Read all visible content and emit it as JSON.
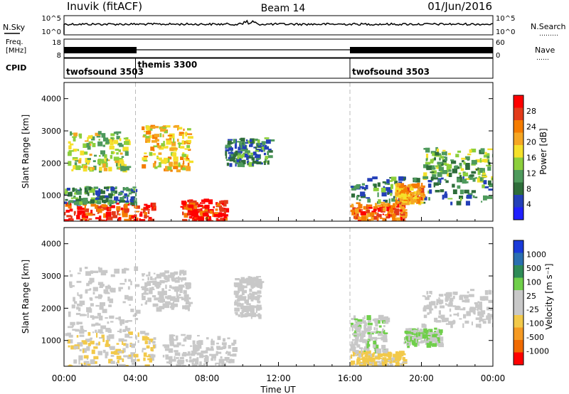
{
  "header": {
    "site": "Inuvik (fitACF)",
    "beam": "Beam 14",
    "date": "01/Jun/2016"
  },
  "panel_labels": {
    "nsky": "N.Sky",
    "nsearch": "N.Search",
    "freq_a": "Freq.",
    "freq_b": "[MHz]",
    "nave": "Nave",
    "cpid": "CPID",
    "dots_nsearch": "………",
    "dots_nave": "……"
  },
  "noise_axis": {
    "left_top": "10^5",
    "left_bottom": "10^0",
    "right_top": "10^5",
    "right_bottom": "10^0"
  },
  "freq_axis": {
    "left_top": "18",
    "left_bottom": "8",
    "right_top": "60",
    "right_bottom": "0"
  },
  "cpid_segments": [
    {
      "label": "twofsound 3503",
      "start_hour": 0
    },
    {
      "label": "themis 3300",
      "start_hour": 4
    },
    {
      "label": "twofsound 3503",
      "start_hour": 16
    }
  ],
  "colors": {
    "power": [
      "#2020ff",
      "#2440b8",
      "#2e6d3a",
      "#4e9a5c",
      "#8ccf3c",
      "#f5e02a",
      "#f5a623",
      "#f57c00",
      "#e33b1a",
      "#ff0000"
    ],
    "velocity": [
      "#ff0000",
      "#f06a00",
      "#f59a23",
      "#f2c94a",
      "#c8c8c8",
      "#c8c8c8",
      "#6fcf4a",
      "#2e8b57",
      "#2a6fb0",
      "#1a3ad9"
    ]
  },
  "chart_data": [
    {
      "type": "heatmap",
      "title": "",
      "xlabel": "",
      "ylabel": "Slant Range [km]",
      "x_ticks": [
        "00:00",
        "04:00",
        "08:00",
        "12:00",
        "16:00",
        "20:00",
        "00:00"
      ],
      "y_ticks": [
        "1000",
        "2000",
        "3000",
        "4000"
      ],
      "ylim": [
        200,
        4500
      ],
      "xlim_hours": [
        0,
        24
      ],
      "colorbar_label": "Power [dB]",
      "colorbar_ticks": [
        "4",
        "8",
        "12",
        "16",
        "20",
        "24",
        "28"
      ],
      "clim": [
        0,
        30
      ],
      "regions": [
        {
          "x0": 0,
          "x1": 5,
          "y0": 200,
          "y1": 800,
          "value": 26
        },
        {
          "x0": 0,
          "x1": 4,
          "y0": 800,
          "y1": 1300,
          "value": 8
        },
        {
          "x0": 0.2,
          "x1": 3.5,
          "y0": 1800,
          "y1": 3000,
          "value": 14
        },
        {
          "x0": 4.3,
          "x1": 7,
          "y0": 1800,
          "y1": 3200,
          "value": 18
        },
        {
          "x0": 6.5,
          "x1": 9,
          "y0": 200,
          "y1": 900,
          "value": 27
        },
        {
          "x0": 9,
          "x1": 11.5,
          "y0": 2000,
          "y1": 2800,
          "value": 8
        },
        {
          "x0": 16,
          "x1": 19,
          "y0": 200,
          "y1": 800,
          "value": 24
        },
        {
          "x0": 16,
          "x1": 24,
          "y0": 800,
          "y1": 1600,
          "value": 8
        },
        {
          "x0": 18.5,
          "x1": 20,
          "y0": 800,
          "y1": 1400,
          "value": 20
        },
        {
          "x0": 20,
          "x1": 24,
          "y0": 1500,
          "y1": 2500,
          "value": 12
        }
      ]
    },
    {
      "type": "heatmap",
      "title": "",
      "xlabel": "Time UT",
      "ylabel": "Slant Range [km]",
      "x_ticks": [
        "00:00",
        "04:00",
        "08:00",
        "12:00",
        "16:00",
        "20:00",
        "00:00"
      ],
      "y_ticks": [
        "1000",
        "2000",
        "3000",
        "4000"
      ],
      "ylim": [
        200,
        4500
      ],
      "xlim_hours": [
        0,
        24
      ],
      "colorbar_label": "Velocity [m s⁻¹]",
      "colorbar_ticks": [
        "-1000",
        "-500",
        "-100",
        "-25",
        "25",
        "100",
        "500",
        "1000"
      ],
      "clim": [
        -1500,
        1500
      ],
      "regions": [
        {
          "x0": 0,
          "x1": 5,
          "y0": 200,
          "y1": 1300,
          "value": -300
        },
        {
          "x0": 0.2,
          "x1": 4,
          "y0": 1300,
          "y1": 3300,
          "value": 0
        },
        {
          "x0": 4.3,
          "x1": 7,
          "y0": 2000,
          "y1": 3200,
          "value": 0
        },
        {
          "x0": 5.5,
          "x1": 9.5,
          "y0": 200,
          "y1": 1200,
          "value": 0
        },
        {
          "x0": 9.5,
          "x1": 11,
          "y0": 1800,
          "y1": 3000,
          "value": 0
        },
        {
          "x0": 16,
          "x1": 19,
          "y0": 200,
          "y1": 700,
          "value": -400
        },
        {
          "x0": 16,
          "x1": 18,
          "y0": 700,
          "y1": 1800,
          "value": 200
        },
        {
          "x0": 19,
          "x1": 21,
          "y0": 900,
          "y1": 1400,
          "value": 300
        },
        {
          "x0": 20,
          "x1": 24,
          "y0": 1500,
          "y1": 2600,
          "value": 0
        }
      ]
    }
  ]
}
